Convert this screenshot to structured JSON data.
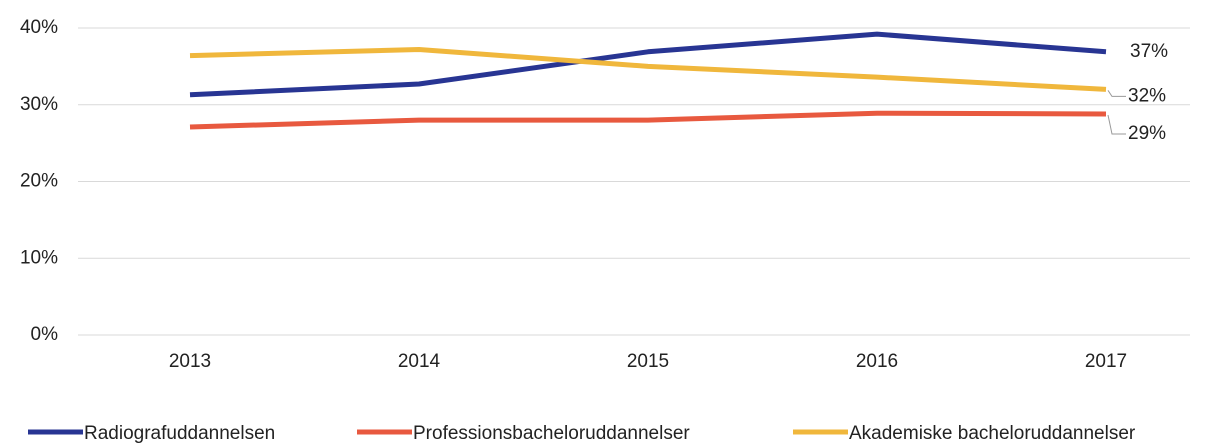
{
  "chart_data": {
    "type": "line",
    "categories": [
      "2013",
      "2014",
      "2015",
      "2016",
      "2017"
    ],
    "series": [
      {
        "name": "Radiografuddannelsen",
        "color": "#283593",
        "values": [
          31.3,
          32.7,
          36.9,
          39.2,
          36.9
        ],
        "value_labels": [
          null,
          null,
          null,
          null,
          "37%"
        ]
      },
      {
        "name": "Professionsbacheloruddannelser",
        "color": "#e8593f",
        "values": [
          27.1,
          28.0,
          28.0,
          28.9,
          28.8
        ],
        "value_labels": [
          null,
          null,
          null,
          null,
          "29%"
        ]
      },
      {
        "name": "Akademiske bacheloruddannelser",
        "color": "#f0b73c",
        "values": [
          36.4,
          37.2,
          35.0,
          33.6,
          32.0
        ],
        "value_labels": [
          null,
          null,
          null,
          null,
          "32%"
        ]
      }
    ],
    "ylim": [
      0,
      40
    ],
    "yticks": [
      {
        "value": 0,
        "label": "0%"
      },
      {
        "value": 10,
        "label": "10%"
      },
      {
        "value": 20,
        "label": "20%"
      },
      {
        "value": 30,
        "label": "30%"
      },
      {
        "value": 40,
        "label": "40%"
      }
    ],
    "grid": true,
    "legend": "bottom"
  }
}
